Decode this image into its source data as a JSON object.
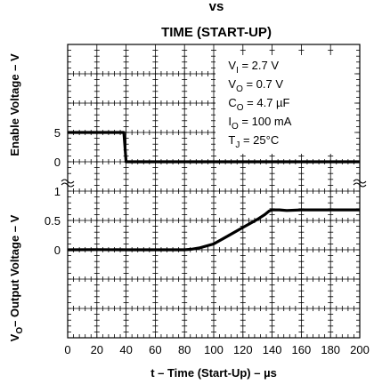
{
  "chart_data": {
    "type": "line",
    "title_lines": [
      "vs",
      "TIME (START-UP)"
    ],
    "xlabel": "t – Time (Start-Up) – µs",
    "xlim": [
      0,
      200
    ],
    "x_ticks": [
      "0",
      "20",
      "40",
      "60",
      "80",
      "100",
      "120",
      "140",
      "160",
      "180",
      "200"
    ],
    "grid": true,
    "conditions": [
      {
        "base": "V",
        "sub": "I",
        "rest": " = 2.7 V"
      },
      {
        "base": "V",
        "sub": "O",
        "rest": " = 0.7 V"
      },
      {
        "base": "C",
        "sub": "O",
        "rest": " = 4.7 µF"
      },
      {
        "base": "I",
        "sub": "O",
        "rest": " = 100 mA"
      },
      {
        "base": "T",
        "sub": "J",
        "rest": " = 25°C"
      }
    ],
    "panels": [
      {
        "id": "enable",
        "ylabel": "Enable Voltage – V",
        "y_ticks": [
          "5",
          "0"
        ],
        "series": [
          {
            "x": [
              0,
              38,
              38.5,
              40,
              200
            ],
            "y": [
              5,
              5,
              5,
              0,
              0
            ]
          }
        ]
      },
      {
        "id": "output",
        "ylabel_parts": {
          "base": "V",
          "sub": "O",
          "rest": "– Output Voltage – V"
        },
        "y_ticks": [
          "1",
          "0.5",
          "0"
        ],
        "series": [
          {
            "x": [
              0,
              20,
              40,
              60,
              80,
              85,
              90,
              100,
              110,
              120,
              130,
              135,
              138,
              140,
              145,
              150,
              160,
              180,
              200
            ],
            "y": [
              0,
              0.003,
              0,
              0,
              0,
              0.01,
              0.03,
              0.1,
              0.24,
              0.38,
              0.52,
              0.6,
              0.66,
              0.68,
              0.68,
              0.67,
              0.68,
              0.68,
              0.68
            ]
          }
        ]
      }
    ]
  }
}
